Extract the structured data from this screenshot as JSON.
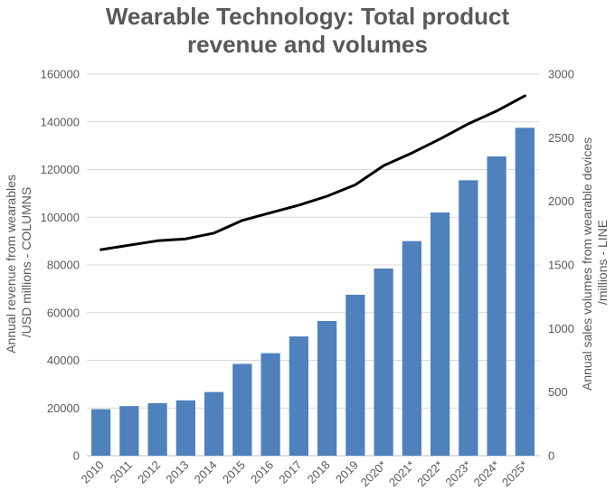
{
  "chart_data": {
    "type": "bar",
    "title_lines": [
      "Wearable Technology: Total product",
      "revenue and volumes"
    ],
    "title": "Wearable Technology: Total product revenue and volumes",
    "ylabel_left_lines": [
      "Annual revenue from wearables",
      "/USD millions - COLUMNS"
    ],
    "ylabel_right_lines": [
      "Annual sales volumes from wearable devices",
      "/millions - LINE"
    ],
    "categories": [
      "2010",
      "2011",
      "2012",
      "2013",
      "2014",
      "2015",
      "2016",
      "2017",
      "2018",
      "2019",
      "2020*",
      "2021*",
      "2022*",
      "2023*",
      "2024*",
      "2025*"
    ],
    "y_left_ticks": [
      0,
      20000,
      40000,
      60000,
      80000,
      100000,
      120000,
      140000,
      160000
    ],
    "y_right_ticks": [
      0,
      500,
      1000,
      1500,
      2000,
      2500,
      3000
    ],
    "ylim_left": [
      0,
      160000
    ],
    "ylim_right": [
      0,
      3000
    ],
    "grid": "horizontal",
    "series": [
      {
        "type": "bar",
        "axis": "left",
        "color": "#4f81bd",
        "values": [
          19500,
          20800,
          22000,
          23200,
          26700,
          38500,
          43000,
          50000,
          56500,
          67500,
          78500,
          90000,
          102000,
          115500,
          125500,
          137500
        ]
      },
      {
        "type": "line",
        "axis": "right",
        "color": "#000000",
        "values": [
          1620,
          1655,
          1690,
          1705,
          1750,
          1850,
          1910,
          1970,
          2040,
          2130,
          2280,
          2380,
          2490,
          2610,
          2710,
          2830
        ]
      }
    ]
  }
}
